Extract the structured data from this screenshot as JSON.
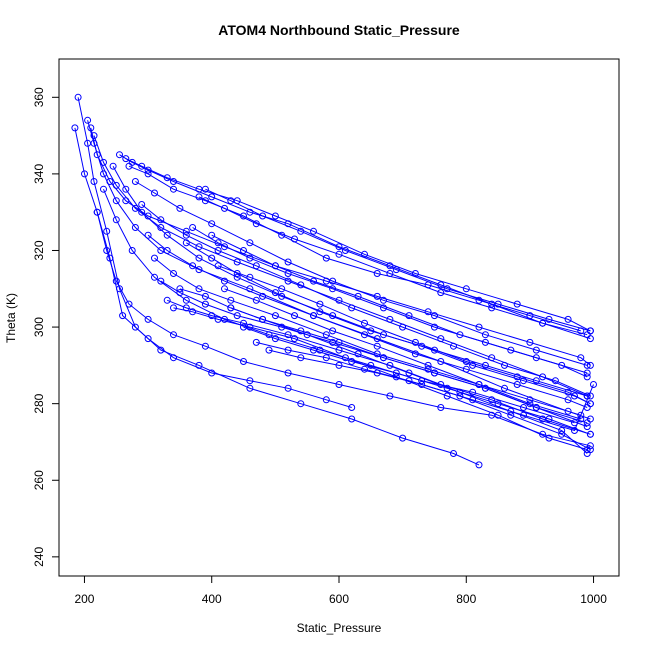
{
  "chart_data": {
    "type": "line",
    "title": "ATOM4 Northbound Static_Pressure",
    "xlabel": "Static_Pressure",
    "ylabel": "Theta (K)",
    "xlim": [
      160,
      1040
    ],
    "ylim": [
      235,
      370
    ],
    "xticks": [
      200,
      400,
      600,
      800,
      1000
    ],
    "yticks": [
      240,
      260,
      280,
      300,
      320,
      340,
      360
    ],
    "series_color": "#0000ff",
    "marker": "open-circle",
    "grid": false,
    "legend": "none",
    "series": [
      {
        "x": [
          185,
          200,
          220,
          240,
          260,
          300,
          340,
          400,
          460,
          520,
          580,
          620
        ],
        "y": [
          352,
          340,
          330,
          318,
          303,
          297,
          292,
          288,
          286,
          284,
          281,
          279
        ]
      },
      {
        "x": [
          190,
          205,
          215,
          235,
          255,
          280,
          320,
          380,
          460,
          540,
          620,
          700,
          780,
          820
        ],
        "y": [
          360,
          348,
          338,
          325,
          310,
          300,
          294,
          290,
          284,
          280,
          276,
          271,
          267,
          264
        ]
      },
      {
        "x": [
          205,
          215,
          230,
          250,
          280,
          320,
          380,
          460,
          560,
          660,
          760,
          860,
          960,
          995
        ],
        "y": [
          354,
          348,
          340,
          333,
          326,
          320,
          315,
          310,
          303,
          297,
          291,
          284,
          278,
          276
        ]
      },
      {
        "x": [
          210,
          220,
          240,
          265,
          300,
          360,
          420,
          500,
          580,
          660,
          740,
          820,
          900,
          980,
          995
        ],
        "y": [
          352,
          345,
          338,
          333,
          329,
          325,
          321,
          316,
          312,
          308,
          304,
          300,
          296,
          292,
          290
        ]
      },
      {
        "x": [
          215,
          230,
          250,
          280,
          320,
          380,
          440,
          520,
          600,
          680,
          760,
          840,
          920,
          990
        ],
        "y": [
          350,
          343,
          337,
          331,
          326,
          321,
          317,
          312,
          307,
          302,
          297,
          292,
          287,
          282
        ]
      },
      {
        "x": [
          255,
          275,
          300,
          340,
          400,
          460,
          520,
          600,
          680,
          760,
          840,
          920,
          990
        ],
        "y": [
          345,
          343,
          341,
          338,
          334,
          330,
          327,
          321,
          316,
          311,
          306,
          301,
          298
        ]
      },
      {
        "x": [
          265,
          290,
          330,
          380,
          440,
          500,
          560,
          640,
          720,
          800,
          880,
          960,
          995
        ],
        "y": [
          344,
          342,
          339,
          336,
          333,
          329,
          325,
          319,
          314,
          310,
          306,
          302,
          299
        ]
      },
      {
        "x": [
          270,
          300,
          340,
          390,
          450,
          510,
          580,
          660,
          740,
          820,
          900,
          980
        ],
        "y": [
          342,
          340,
          336,
          333,
          329,
          324,
          318,
          314,
          311,
          307,
          303,
          299
        ]
      },
      {
        "x": [
          280,
          310,
          350,
          400,
          460,
          520,
          590,
          670,
          750,
          830,
          910,
          990
        ],
        "y": [
          338,
          335,
          331,
          327,
          322,
          317,
          312,
          307,
          303,
          298,
          294,
          290
        ]
      },
      {
        "x": [
          290,
          320,
          360,
          410,
          470,
          540,
          620,
          700,
          780,
          860,
          940,
          995
        ],
        "y": [
          332,
          328,
          324,
          320,
          316,
          311,
          305,
          300,
          295,
          290,
          286,
          282
        ]
      },
      {
        "x": [
          300,
          330,
          370,
          420,
          480,
          560,
          640,
          720,
          800,
          880,
          960,
          990
        ],
        "y": [
          324,
          320,
          316,
          312,
          308,
          303,
          298,
          293,
          289,
          285,
          281,
          279
        ]
      },
      {
        "x": [
          310,
          340,
          380,
          430,
          500,
          580,
          660,
          740,
          820,
          900,
          980
        ],
        "y": [
          318,
          314,
          310,
          307,
          303,
          298,
          293,
          289,
          285,
          281,
          277
        ]
      },
      {
        "x": [
          320,
          350,
          390,
          440,
          510,
          590,
          670,
          750,
          830,
          910,
          990
        ],
        "y": [
          312,
          309,
          306,
          303,
          300,
          296,
          292,
          288,
          284,
          279,
          275
        ]
      },
      {
        "x": [
          330,
          360,
          400,
          450,
          520,
          600,
          680,
          760,
          840,
          920,
          995
        ],
        "y": [
          307,
          305,
          303,
          301,
          298,
          294,
          290,
          285,
          281,
          276,
          272
        ]
      },
      {
        "x": [
          340,
          370,
          410,
          460,
          530,
          610,
          690,
          770,
          850,
          930,
          990
        ],
        "y": [
          305,
          304,
          302,
          300,
          297,
          292,
          287,
          282,
          277,
          271,
          268
        ]
      },
      {
        "x": [
          350,
          390,
          430,
          480,
          550,
          630,
          710,
          790,
          870,
          950,
          990
        ],
        "y": [
          310,
          308,
          305,
          302,
          298,
          293,
          288,
          283,
          278,
          273,
          267
        ]
      },
      {
        "x": [
          360,
          400,
          440,
          500,
          570,
          650,
          730,
          810,
          890,
          970,
          995
        ],
        "y": [
          322,
          318,
          314,
          309,
          304,
          299,
          295,
          290,
          286,
          282,
          280
        ]
      },
      {
        "x": [
          370,
          410,
          460,
          520,
          590,
          670,
          750,
          830,
          910,
          990
        ],
        "y": [
          326,
          322,
          318,
          314,
          310,
          305,
          300,
          296,
          292,
          288
        ]
      },
      {
        "x": [
          380,
          420,
          470,
          530,
          600,
          680,
          760,
          840,
          920,
          995
        ],
        "y": [
          334,
          331,
          327,
          323,
          319,
          314,
          309,
          305,
          301,
          297
        ]
      },
      {
        "x": [
          390,
          430,
          480,
          540,
          610,
          690,
          770,
          850,
          930,
          995
        ],
        "y": [
          336,
          333,
          329,
          325,
          320,
          315,
          310,
          306,
          302,
          299
        ]
      },
      {
        "x": [
          400,
          450,
          500,
          560,
          630,
          710,
          790,
          870,
          950,
          990
        ],
        "y": [
          324,
          320,
          316,
          312,
          308,
          303,
          298,
          294,
          290,
          287
        ]
      },
      {
        "x": [
          410,
          460,
          510,
          570,
          640,
          720,
          800,
          880,
          960,
          995
        ],
        "y": [
          316,
          313,
          310,
          306,
          301,
          296,
          291,
          287,
          283,
          280
        ]
      },
      {
        "x": [
          420,
          470,
          530,
          590,
          660,
          740,
          820,
          900,
          980
        ],
        "y": [
          310,
          307,
          303,
          299,
          295,
          290,
          285,
          280,
          276
        ]
      },
      {
        "x": [
          430,
          480,
          540,
          600,
          670,
          750,
          830,
          910,
          990
        ],
        "y": [
          305,
          302,
          299,
          296,
          292,
          288,
          284,
          279,
          274
        ]
      },
      {
        "x": [
          450,
          500,
          560,
          620,
          690,
          770,
          850,
          930,
          995
        ],
        "y": [
          300,
          297,
          294,
          291,
          288,
          284,
          280,
          276,
          272
        ]
      },
      {
        "x": [
          470,
          520,
          580,
          640,
          710,
          790,
          870,
          950,
          995
        ],
        "y": [
          296,
          294,
          292,
          289,
          286,
          282,
          277,
          272,
          268
        ]
      },
      {
        "x": [
          490,
          540,
          600,
          660,
          730,
          810,
          890,
          970,
          1000
        ],
        "y": [
          294,
          292,
          290,
          288,
          285,
          281,
          277,
          273,
          285
        ]
      },
      {
        "x": [
          220,
          235,
          250,
          270,
          300,
          340,
          390,
          450,
          520,
          600,
          680,
          760,
          840,
          920,
          995
        ],
        "y": [
          330,
          320,
          312,
          306,
          302,
          298,
          295,
          291,
          288,
          285,
          282,
          279,
          277,
          272,
          269
        ]
      },
      {
        "x": [
          230,
          250,
          275,
          310,
          360,
          420,
          490,
          570,
          650,
          730,
          810,
          890,
          970
        ],
        "y": [
          336,
          328,
          320,
          313,
          307,
          302,
          298,
          294,
          290,
          286,
          283,
          279,
          275
        ]
      },
      {
        "x": [
          245,
          265,
          290,
          330,
          380,
          440,
          510,
          590,
          670,
          750,
          830,
          910,
          990
        ],
        "y": [
          342,
          336,
          330,
          324,
          318,
          313,
          308,
          303,
          298,
          294,
          290,
          286,
          282
        ]
      }
    ]
  }
}
